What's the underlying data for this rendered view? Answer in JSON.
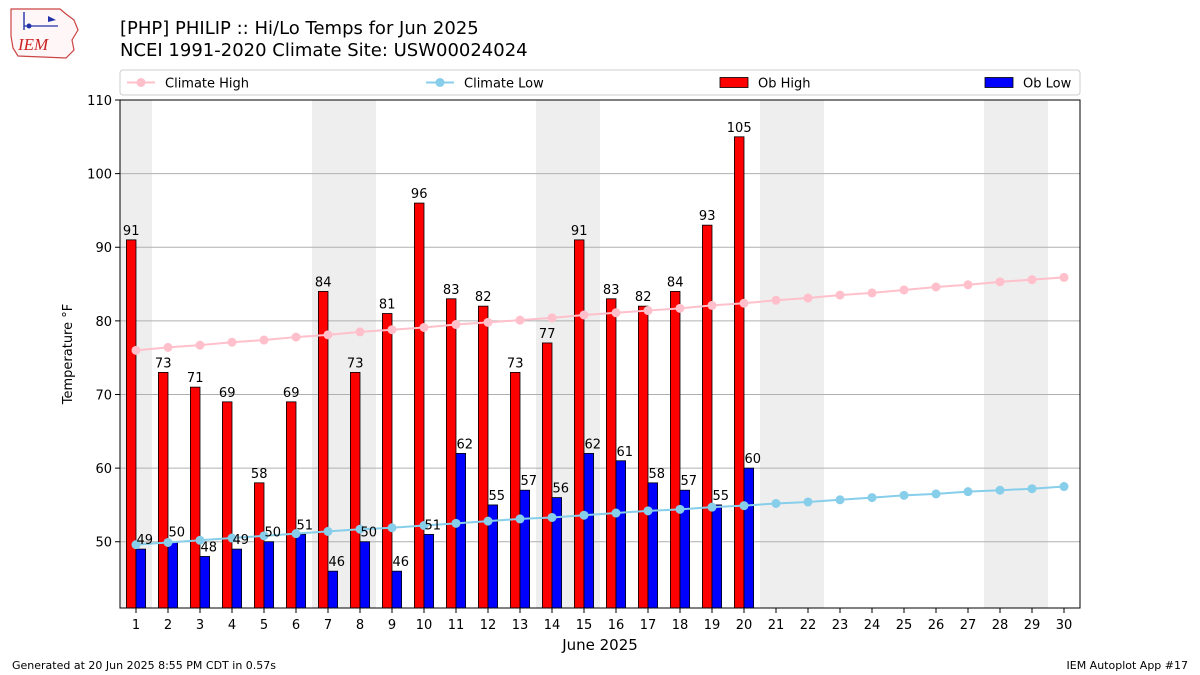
{
  "header": {
    "title": "[PHP] PHILIP :: Hi/Lo Temps for Jun 2025",
    "subtitle": "NCEI 1991-2020 Climate Site: USW00024024",
    "logo_text": "IEM"
  },
  "footer": {
    "generated": "Generated at 20 Jun 2025 8:55 PM CDT in 0.57s",
    "app": "IEM Autoplot App #17"
  },
  "colors": {
    "ob_high": "#ff0000",
    "ob_low": "#0000ff",
    "climate_high": "#ffc0cb",
    "climate_low": "#87ceeb",
    "weekend_band": "#eeeeee",
    "grid": "#b0b0b0"
  },
  "chart_data": {
    "type": "bar",
    "xlabel": "June 2025",
    "ylabel": "Temperature °F",
    "ylim": [
      41,
      110
    ],
    "xlim": [
      0.5,
      30.5
    ],
    "yticks": [
      50,
      60,
      70,
      80,
      90,
      100,
      110
    ],
    "days": [
      1,
      2,
      3,
      4,
      5,
      6,
      7,
      8,
      9,
      10,
      11,
      12,
      13,
      14,
      15,
      16,
      17,
      18,
      19,
      20,
      21,
      22,
      23,
      24,
      25,
      26,
      27,
      28,
      29,
      30
    ],
    "weekend_days": [
      1,
      7,
      8,
      14,
      15,
      21,
      22,
      28,
      29
    ],
    "grid": "horizontal",
    "legend_position": "top",
    "series": [
      {
        "name": "Climate High",
        "kind": "line",
        "values": [
          76.0,
          76.4,
          76.7,
          77.1,
          77.4,
          77.8,
          78.1,
          78.5,
          78.8,
          79.1,
          79.5,
          79.8,
          80.1,
          80.4,
          80.8,
          81.1,
          81.4,
          81.7,
          82.1,
          82.4,
          82.8,
          83.1,
          83.5,
          83.8,
          84.2,
          84.6,
          84.9,
          85.3,
          85.6,
          85.9
        ]
      },
      {
        "name": "Climate Low",
        "kind": "line",
        "values": [
          49.6,
          49.9,
          50.2,
          50.5,
          50.8,
          51.1,
          51.4,
          51.7,
          51.9,
          52.2,
          52.5,
          52.8,
          53.1,
          53.3,
          53.6,
          53.9,
          54.2,
          54.4,
          54.7,
          54.9,
          55.2,
          55.4,
          55.7,
          56.0,
          56.3,
          56.5,
          56.8,
          57.0,
          57.2,
          57.5
        ]
      },
      {
        "name": "Ob High",
        "kind": "bar",
        "values": [
          91,
          73,
          71,
          69,
          58,
          69,
          84,
          73,
          81,
          96,
          83,
          82,
          73,
          77,
          91,
          83,
          82,
          84,
          93,
          105
        ]
      },
      {
        "name": "Ob Low",
        "kind": "bar",
        "values": [
          49,
          50,
          48,
          49,
          50,
          51,
          46,
          50,
          46,
          51,
          62,
          55,
          57,
          56,
          62,
          61,
          58,
          57,
          55,
          60
        ]
      }
    ]
  }
}
